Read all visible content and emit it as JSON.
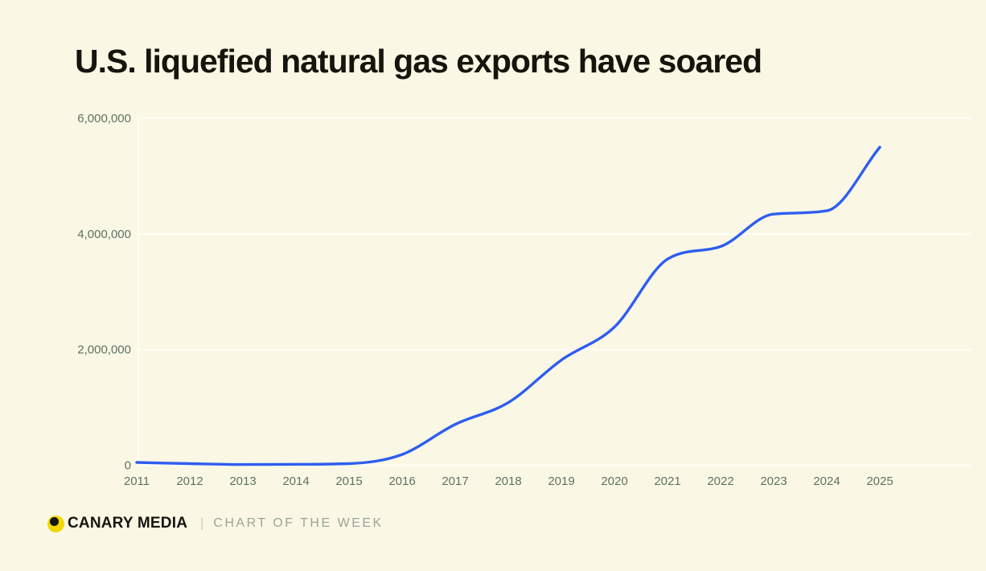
{
  "title": "U.S. liquefied natural gas exports have soared",
  "footer": {
    "brand": "CANARY MEDIA",
    "separator": "|",
    "series_label": "CHART OF THE WEEK"
  },
  "colors": {
    "background": "#faf8e4",
    "title_text": "#15150e",
    "axis_label": "#5f7166",
    "gridline": "rgba(255,255,255,0.85)",
    "line": "#2e5ef0",
    "logo_yellow": "#f2d802",
    "logo_dot": "#15150e",
    "footer_label": "#9aa49c"
  },
  "chart_data": {
    "type": "line",
    "title": "U.S. liquefied natural gas exports have soared",
    "x": [
      2011,
      2012,
      2013,
      2014,
      2015,
      2016,
      2017,
      2018,
      2019,
      2020,
      2021,
      2022,
      2023,
      2024,
      2025
    ],
    "categories": [
      "2011",
      "2012",
      "2013",
      "2014",
      "2015",
      "2016",
      "2017",
      "2018",
      "2019",
      "2020",
      "2021",
      "2022",
      "2023",
      "2024",
      "2025"
    ],
    "series": [
      {
        "name": "U.S. liquefied natural gas exports",
        "values": [
          49000,
          28000,
          13000,
          16000,
          28000,
          187000,
          707000,
          1083000,
          1819000,
          2390000,
          3564000,
          3782000,
          4343000,
          4400000,
          5500000
        ]
      }
    ],
    "xlim": [
      2011,
      2025
    ],
    "ylim": [
      0,
      6000000
    ],
    "y_ticks": [
      {
        "value": 0,
        "label": "0"
      },
      {
        "value": 2000000,
        "label": "2,000,000"
      },
      {
        "value": 4000000,
        "label": "4,000,000"
      },
      {
        "value": 6000000,
        "label": "6,000,000"
      }
    ],
    "xlabel": "",
    "ylabel": "",
    "grid": "horizontal",
    "legend": "none",
    "line_color": "#2e5ef0"
  }
}
